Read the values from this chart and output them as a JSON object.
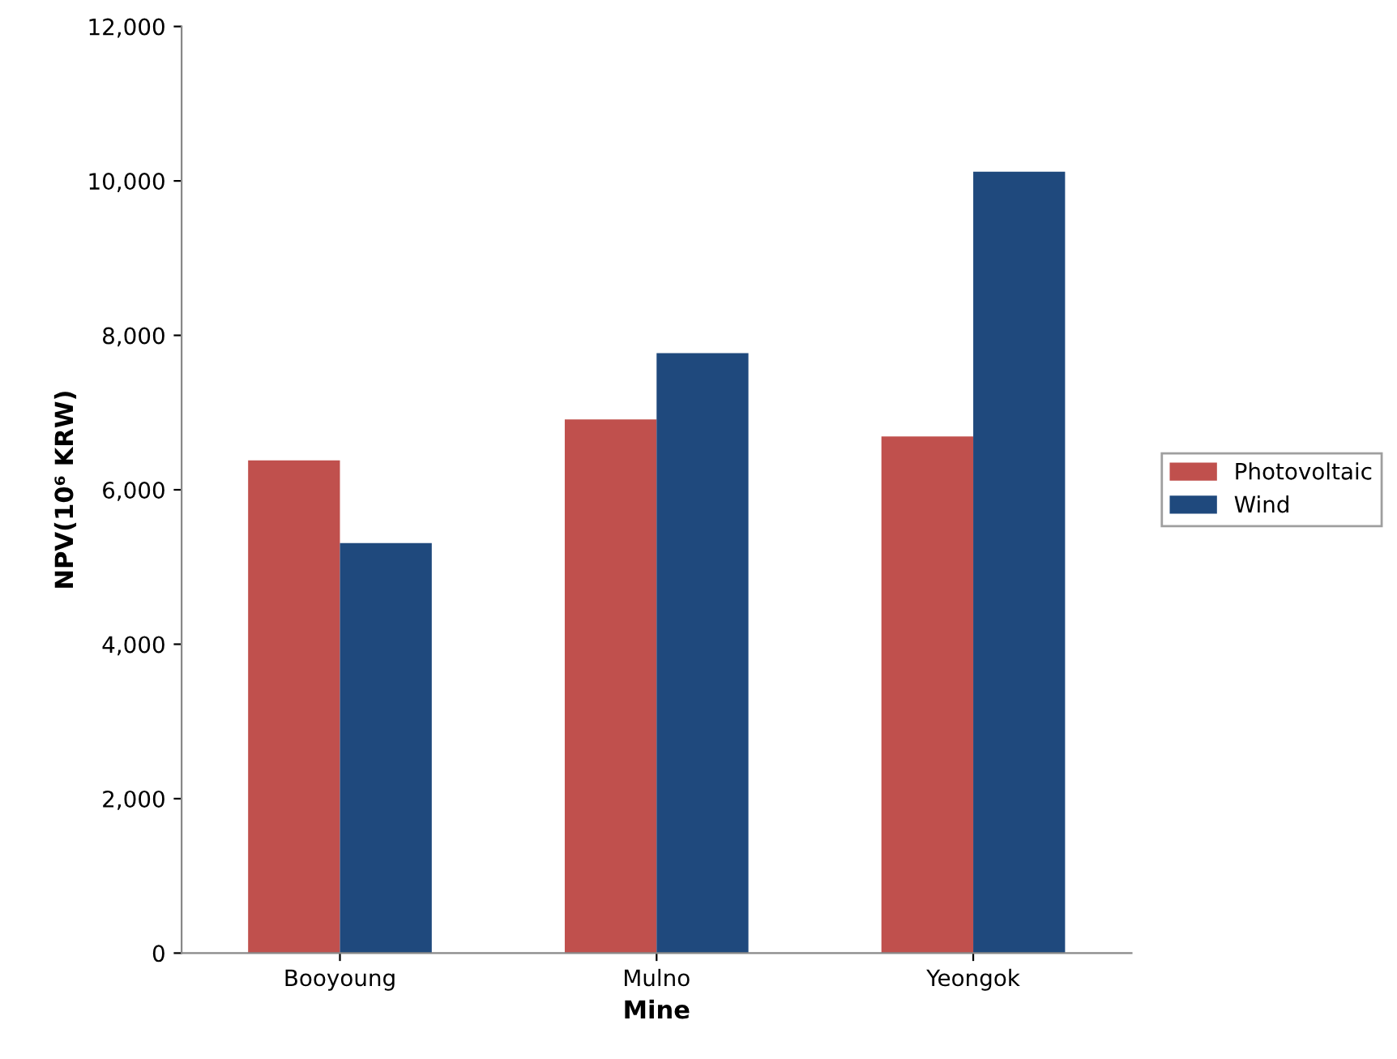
{
  "chart_data": {
    "type": "bar",
    "xlabel": "Mine",
    "ylabel": "NPV(10⁶ KRW)",
    "categories": [
      "Booyoung",
      "Mulno",
      "Yeongok"
    ],
    "series": [
      {
        "name": "Photovoltaic",
        "color": "#c0504d",
        "values": [
          6380,
          6910,
          6690
        ]
      },
      {
        "name": "Wind",
        "color": "#1f497d",
        "values": [
          5310,
          7770,
          10120
        ]
      }
    ],
    "ylim": [
      0,
      12000
    ],
    "yticks": [
      0,
      {
        "value": 2000,
        "label": "2,000"
      },
      {
        "value": 4000,
        "label": "4,000"
      },
      {
        "value": 6000,
        "label": "6,000"
      },
      {
        "value": 8000,
        "label": "8,000"
      },
      {
        "value": 10000,
        "label": "10,000"
      },
      {
        "value": 12000,
        "label": "12,000"
      }
    ],
    "grid": false,
    "legend": "right"
  }
}
